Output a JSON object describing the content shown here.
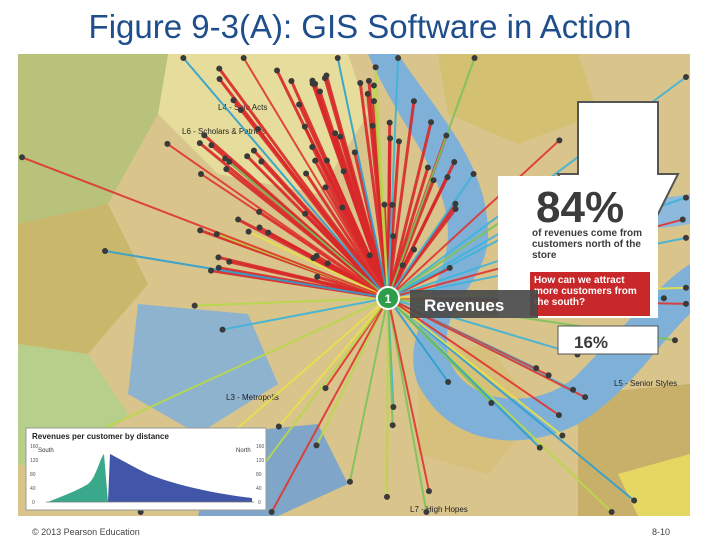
{
  "slide": {
    "title": "Figure 9-3(A): GIS Software in Action",
    "copyright": "© 2013 Pearson Education",
    "page_number": "8-10"
  },
  "map": {
    "segment_labels": [
      "L4 - Solo Acts",
      "L6 - Scholars & Patriots",
      "L3 - Metropolis",
      "L5 - Senior Styles",
      "L7 - High Hopes"
    ],
    "store_marker": "1",
    "revenues_label": "Revenues"
  },
  "callout": {
    "north_percent": "84%",
    "north_description": "of revenues come from customers north of the store",
    "question": "How can we attract more customers from the south?",
    "south_percent": "16%"
  },
  "inset_chart": {
    "title": "Revenues per customer by distance",
    "south_label": "South",
    "north_label": "North",
    "y_ticks_left": [
      "160",
      "120",
      "80",
      "40",
      "0"
    ],
    "y_ticks_right": [
      "160",
      "120",
      "80",
      "40",
      "0"
    ]
  },
  "colors": {
    "title": "#1f4e8c",
    "river": "#7fb0d8",
    "revenue_ray": "#d8282a",
    "callout_red": "#c8282a",
    "arrow_dark": "#3b3b3b"
  }
}
